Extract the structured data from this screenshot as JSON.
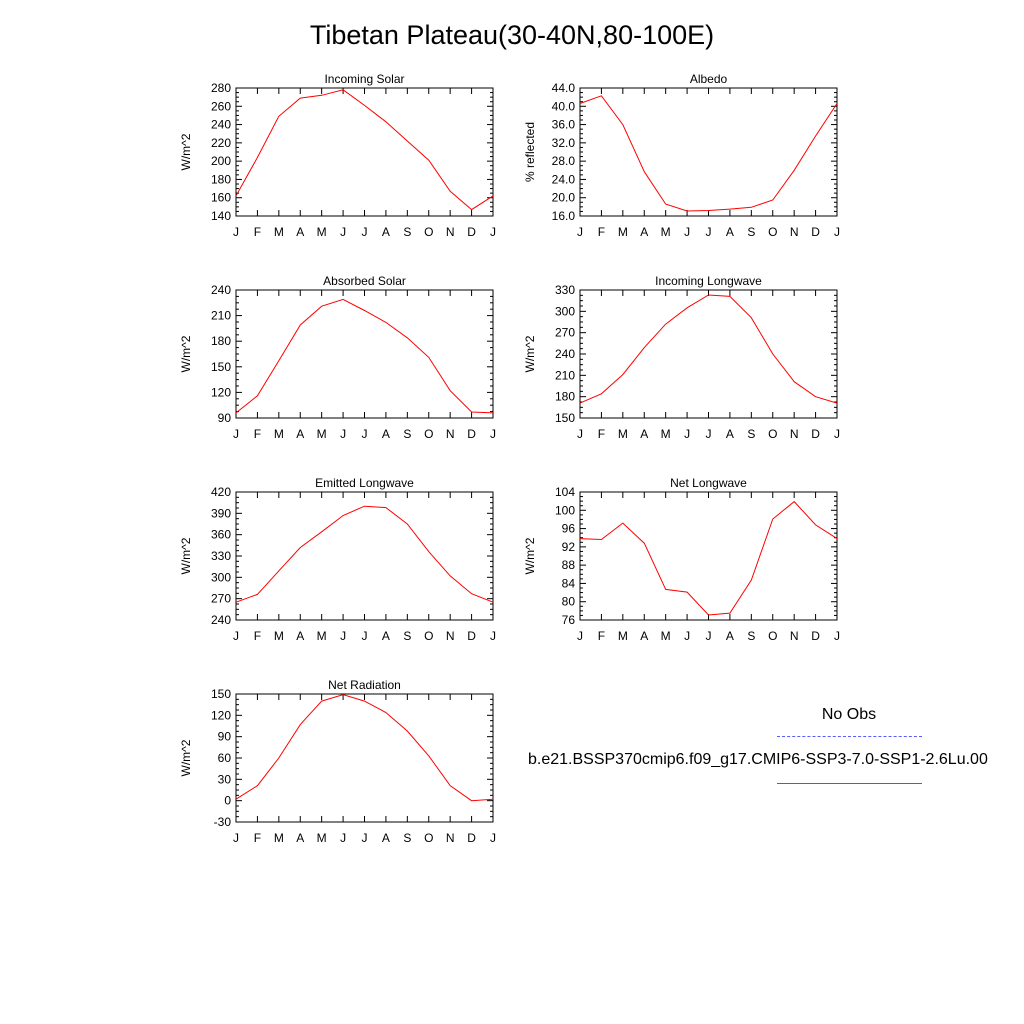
{
  "figure": {
    "title": "Tibetan Plateau(30-40N,80-100E)",
    "months": [
      "J",
      "F",
      "M",
      "A",
      "M",
      "J",
      "J",
      "A",
      "S",
      "O",
      "N",
      "D",
      "J"
    ],
    "legend": {
      "obs_label": "No Obs",
      "obs_color": "#5a5aff",
      "case_label": "b.e21.BSSP370cmip6.f09_g17.CMIP6-SSP3-7.0-SSP1-2.6Lu.00",
      "case_color": "#ff0000"
    }
  },
  "chart_data": [
    {
      "type": "line",
      "title": "Incoming Solar",
      "ylabel": "W/m^2",
      "ylim": [
        140,
        280
      ],
      "yticks": [
        "140",
        "160",
        "180",
        "200",
        "220",
        "240",
        "260",
        "280"
      ],
      "x": [
        "J",
        "F",
        "M",
        "A",
        "M",
        "J",
        "J",
        "A",
        "S",
        "O",
        "N",
        "D",
        "J"
      ],
      "values": [
        162,
        204,
        249,
        269,
        272,
        278,
        261,
        243,
        222,
        201,
        167,
        147,
        162
      ]
    },
    {
      "type": "line",
      "title": "Albedo",
      "ylabel": "% reflected",
      "ylim": [
        16.0,
        44.0
      ],
      "yticks": [
        "16.0",
        "20.0",
        "24.0",
        "28.0",
        "32.0",
        "36.0",
        "40.0",
        "44.0"
      ],
      "x": [
        "J",
        "F",
        "M",
        "A",
        "M",
        "J",
        "J",
        "A",
        "S",
        "O",
        "N",
        "D",
        "J"
      ],
      "values": [
        40.6,
        42.3,
        36.0,
        25.7,
        18.6,
        17.1,
        17.2,
        17.5,
        17.9,
        19.5,
        26.0,
        33.5,
        40.6
      ]
    },
    {
      "type": "line",
      "title": "Absorbed Solar",
      "ylabel": "W/m^2",
      "ylim": [
        90,
        240
      ],
      "yticks": [
        "90",
        "120",
        "150",
        "180",
        "210",
        "240"
      ],
      "x": [
        "J",
        "F",
        "M",
        "A",
        "M",
        "J",
        "J",
        "A",
        "S",
        "O",
        "N",
        "D",
        "J"
      ],
      "values": [
        96,
        116,
        157,
        199,
        221,
        229,
        216,
        202,
        184,
        161,
        122,
        97,
        96
      ]
    },
    {
      "type": "line",
      "title": "Incoming Longwave",
      "ylabel": "W/m^2",
      "ylim": [
        150,
        330
      ],
      "yticks": [
        "150",
        "180",
        "210",
        "240",
        "270",
        "300",
        "330"
      ],
      "x": [
        "J",
        "F",
        "M",
        "A",
        "M",
        "J",
        "J",
        "A",
        "S",
        "O",
        "N",
        "D",
        "J"
      ],
      "values": [
        171,
        184,
        211,
        249,
        282,
        305,
        323,
        321,
        291,
        240,
        201,
        180,
        171
      ]
    },
    {
      "type": "line",
      "title": "Emitted Longwave",
      "ylabel": "W/m^2",
      "ylim": [
        240,
        420
      ],
      "yticks": [
        "240",
        "270",
        "300",
        "330",
        "360",
        "390",
        "420"
      ],
      "x": [
        "J",
        "F",
        "M",
        "A",
        "M",
        "J",
        "J",
        "A",
        "S",
        "O",
        "N",
        "D",
        "J"
      ],
      "values": [
        265,
        276,
        309,
        342,
        364,
        387,
        400,
        398,
        375,
        336,
        302,
        277,
        265
      ]
    },
    {
      "type": "line",
      "title": "Net Longwave",
      "ylabel": "W/m^2",
      "ylim": [
        76,
        104
      ],
      "yticks": [
        "76",
        "80",
        "84",
        "88",
        "92",
        "96",
        "100",
        "104"
      ],
      "x": [
        "J",
        "F",
        "M",
        "A",
        "M",
        "J",
        "J",
        "A",
        "S",
        "O",
        "N",
        "D",
        "J"
      ],
      "values": [
        93.8,
        93.6,
        97.2,
        92.8,
        82.7,
        82.1,
        77.1,
        77.5,
        84.7,
        98.1,
        101.9,
        96.8,
        93.8
      ]
    },
    {
      "type": "line",
      "title": "Net Radiation",
      "ylabel": "W/m^2",
      "ylim": [
        -30,
        150
      ],
      "yticks": [
        "-30",
        "0",
        "30",
        "60",
        "90",
        "120",
        "150"
      ],
      "x": [
        "J",
        "F",
        "M",
        "A",
        "M",
        "J",
        "J",
        "A",
        "S",
        "O",
        "N",
        "D",
        "J"
      ],
      "values": [
        2,
        21,
        60,
        107,
        140,
        149,
        140,
        124,
        98,
        63,
        21,
        0,
        2
      ]
    }
  ]
}
